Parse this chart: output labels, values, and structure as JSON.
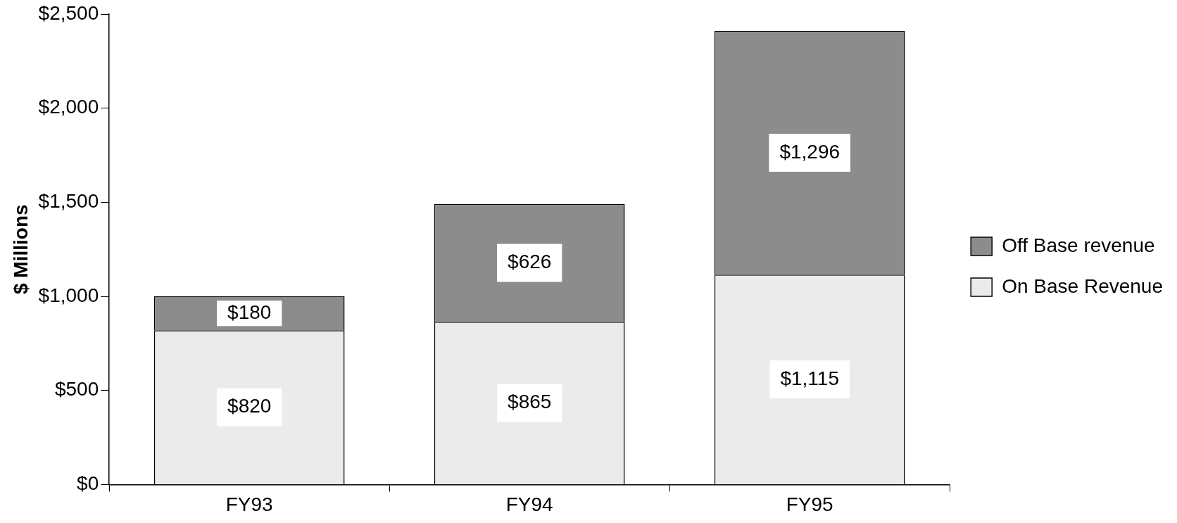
{
  "chart_data": {
    "type": "bar",
    "stacked": true,
    "ylabel": "$ Millions",
    "categories": [
      "FY93",
      "FY94",
      "FY95"
    ],
    "series": [
      {
        "name": "On Base Revenue",
        "color": "#ebebeb",
        "values": [
          820,
          865,
          1115
        ],
        "value_labels": [
          "$820",
          "$865",
          "$1,115"
        ]
      },
      {
        "name": "Off Base revenue",
        "color": "#8c8c8c",
        "values": [
          180,
          626,
          1296
        ],
        "value_labels": [
          "$180",
          "$626",
          "$1,296"
        ]
      }
    ],
    "ylim": [
      0,
      2500
    ],
    "yticks": [
      {
        "value": 0,
        "label": "$0"
      },
      {
        "value": 500,
        "label": "$500"
      },
      {
        "value": 1000,
        "label": "$1,000"
      },
      {
        "value": 1500,
        "label": "$1,500"
      },
      {
        "value": 2000,
        "label": "$2,000"
      },
      {
        "value": 2500,
        "label": "$2,500"
      }
    ],
    "legend": "right",
    "grid": false
  }
}
